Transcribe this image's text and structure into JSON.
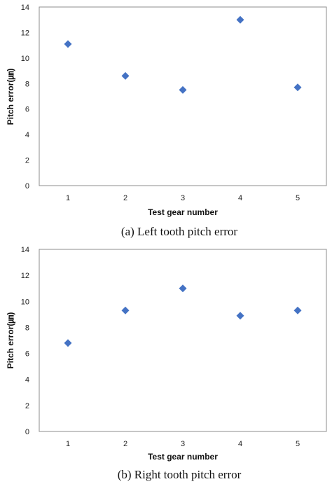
{
  "chart_data": [
    {
      "type": "scatter",
      "caption": "(a) Left tooth pitch error",
      "xlabel": "Test gear number",
      "ylabel": "Pitch error(㎛)",
      "x": [
        1,
        2,
        3,
        4,
        5
      ],
      "series": [
        {
          "values": [
            11.1,
            8.6,
            7.5,
            13.0,
            7.7
          ],
          "color": "#4472c4",
          "marker": "diamond"
        }
      ],
      "xticks": [
        "1",
        "2",
        "3",
        "4",
        "5"
      ],
      "yticks": [
        "0",
        "2",
        "4",
        "6",
        "8",
        "10",
        "12",
        "14"
      ],
      "xlim": [
        0.5,
        5.5
      ],
      "ylim": [
        0,
        14
      ],
      "grid": false,
      "legend": "none"
    },
    {
      "type": "scatter",
      "caption": "(b) Right tooth pitch error",
      "xlabel": "Test gear number",
      "ylabel": "Pitch error(㎛)",
      "x": [
        1,
        2,
        3,
        4,
        5
      ],
      "series": [
        {
          "values": [
            6.8,
            9.3,
            11.0,
            8.9,
            9.3
          ],
          "color": "#4472c4",
          "marker": "diamond"
        }
      ],
      "xticks": [
        "1",
        "2",
        "3",
        "4",
        "5"
      ],
      "yticks": [
        "0",
        "2",
        "4",
        "6",
        "8",
        "10",
        "12",
        "14"
      ],
      "xlim": [
        0.5,
        5.5
      ],
      "ylim": [
        0,
        14
      ],
      "grid": false,
      "legend": "none"
    }
  ]
}
